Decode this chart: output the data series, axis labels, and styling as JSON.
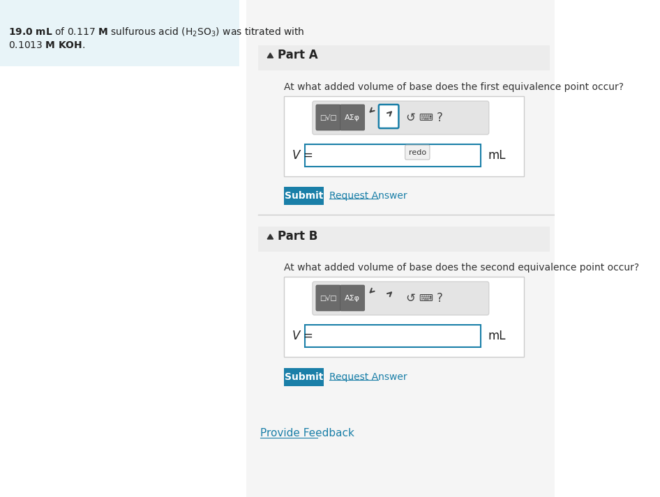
{
  "bg_color": "#ffffff",
  "left_panel_bg": "#e8f4f8",
  "right_panel_bg": "#f5f5f5",
  "part_a_label": "Part A",
  "part_a_question": "At what added volume of base does the first equivalence point occur?",
  "part_b_label": "Part B",
  "part_b_question": "At what added volume of base does the second equivalence point occur?",
  "ml_label": "mL",
  "submit_bg": "#1a7fa8",
  "submit_text": "Submit",
  "submit_text_color": "#ffffff",
  "request_answer_text": "Request Answer",
  "request_answer_color": "#1a7fa8",
  "provide_feedback_text": "Provide Feedback",
  "provide_feedback_color": "#1a7fa8",
  "toolbar_btn1_bg": "#6b6b6b",
  "toolbar_btn2_bg": "#6b6b6b",
  "input_box_border": "#1a7fa8",
  "input_box_bg": "#ffffff",
  "redo_tooltip": "redo",
  "section_header_bg": "#ececec",
  "outer_box_border": "#cccccc",
  "divider_color": "#cccccc"
}
